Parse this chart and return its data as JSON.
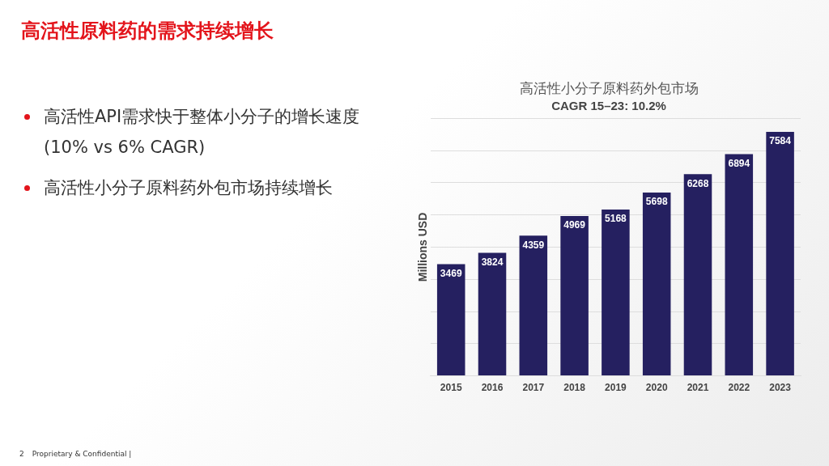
{
  "chart_data": {
    "type": "bar",
    "title": "高活性小分子原料药外包市场",
    "subtitle": "CAGR 15–23: 10.2%",
    "ylabel": "Millions USD",
    "categories": [
      "2015",
      "2016",
      "2017",
      "2018",
      "2019",
      "2020",
      "2021",
      "2022",
      "2023"
    ],
    "values": [
      3469,
      3824,
      4359,
      4969,
      5168,
      5698,
      6268,
      6894,
      7584
    ],
    "color": "#252060",
    "data_labels": true,
    "ylim": [
      0,
      8000
    ],
    "yticks": [
      {
        "value": 0,
        "label": null
      },
      {
        "value": 1000,
        "label": null
      },
      {
        "value": 2000,
        "label": null
      },
      {
        "value": 3000,
        "label": null
      },
      {
        "value": 4000,
        "label": null
      },
      {
        "value": 5000,
        "label": null
      },
      {
        "value": 6000,
        "label": null
      },
      {
        "value": 7000,
        "label": null
      },
      {
        "value": 8000,
        "label": null
      }
    ],
    "tick_labels": "x",
    "grid": "y",
    "legend": false,
    "annotations": [
      "高活性原料药的需求持续增长",
      "高活性API需求快于整体小分子的增长速度(10% vs 6% CAGR)",
      "高活性小分子原料药外包市场持续增长",
      "2",
      "Proprietary & Confidential |"
    ]
  }
}
